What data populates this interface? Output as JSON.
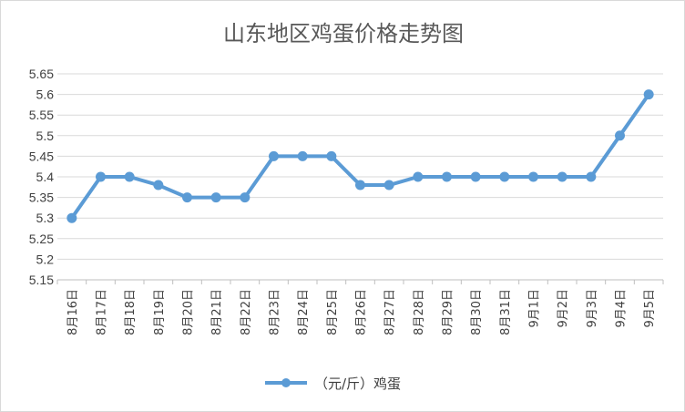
{
  "chart_data": {
    "type": "line",
    "title": "山东地区鸡蛋价格走势图",
    "xlabel": "",
    "ylabel": "",
    "ylim": [
      5.15,
      5.65
    ],
    "ytick_step": 0.05,
    "grid": true,
    "legend_position": "bottom",
    "categories": [
      "8月16日",
      "8月17日",
      "8月18日",
      "8月19日",
      "8月20日",
      "8月21日",
      "8月22日",
      "8月23日",
      "8月24日",
      "8月25日",
      "8月26日",
      "8月27日",
      "8月28日",
      "8月29日",
      "8月30日",
      "8月31日",
      "9月1日",
      "9月2日",
      "9月3日",
      "9月4日",
      "9月5日"
    ],
    "series": [
      {
        "name": "（元/斤）鸡蛋",
        "color": "#5b9bd5",
        "values": [
          5.3,
          5.4,
          5.4,
          5.38,
          5.35,
          5.35,
          5.35,
          5.45,
          5.45,
          5.45,
          5.38,
          5.38,
          5.4,
          5.4,
          5.4,
          5.4,
          5.4,
          5.4,
          5.4,
          5.5,
          5.6
        ]
      }
    ]
  }
}
